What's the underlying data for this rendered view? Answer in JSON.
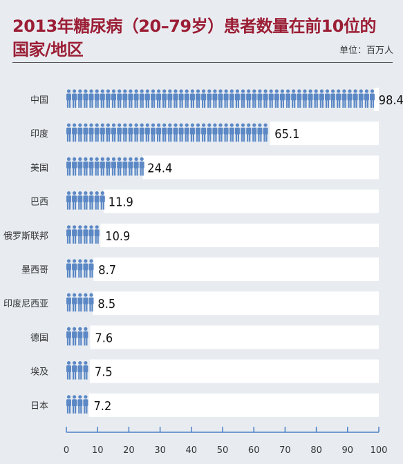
{
  "title_line1": "2013年糖尿病（20–79岁）患者数量在前10位的",
  "title_line2": "国家/地区",
  "unit": "单位：百万人",
  "colors": {
    "title": "#9b1e35",
    "person": "#5b88c5",
    "background": "#e8ecf1",
    "bar": "#ffffff",
    "axis": "#4a7fc4"
  },
  "chart_data": {
    "type": "bar",
    "orientation": "horizontal",
    "title": "2013年糖尿病（20–79岁）患者数量在前10位的国家/地区",
    "xlabel": "单位：百万人",
    "categories": [
      "中国",
      "印度",
      "美国",
      "巴西",
      "俄罗斯联邦",
      "墨西哥",
      "印度尼西亚",
      "德国",
      "埃及",
      "日本"
    ],
    "values": [
      98.4,
      65.1,
      24.4,
      11.9,
      10.9,
      8.7,
      8.5,
      7.6,
      7.5,
      7.2
    ],
    "value_labels": [
      "98.4",
      "65.1",
      "24.4",
      "11.9",
      "10.9",
      "8.7",
      "8.5",
      "7.6",
      "7.5",
      "7.2"
    ],
    "xlim": [
      0,
      100
    ],
    "xticks": [
      0,
      10,
      20,
      30,
      40,
      50,
      60,
      70,
      80,
      90,
      100
    ],
    "xtick_labels": [
      "0",
      "10",
      "20",
      "30",
      "40",
      "50",
      "60",
      "70",
      "80",
      "90",
      "100"
    ],
    "icon": "person-icon",
    "grid": false
  }
}
